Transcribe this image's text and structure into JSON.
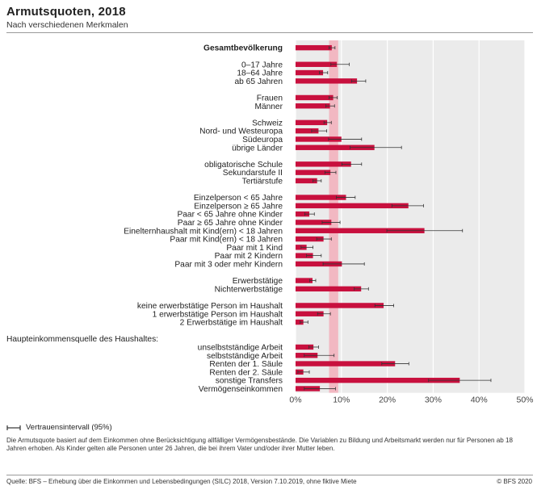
{
  "header": {
    "title": "Armutsquoten, 2018",
    "subtitle": "Nach verschiedenen Merkmalen"
  },
  "legend": {
    "ci_label": "Vertrauensintervall (95%)"
  },
  "note": "Die Armutsquote basiert auf dem Einkommen ohne Berücksichtigung allfälliger Vermögensbestände. Die Variablen zu Bildung und Arbeitsmarkt werden nur für Personen ab 18 Jahren erhoben. Als Kinder gelten alle Personen unter 26 Jahren, die bei ihrem Vater und/oder ihrer Mutter leben.",
  "footer": {
    "source": "Quelle: BFS – Erhebung über die Einkommen und Lebensbedingungen (SILC) 2018, Version 7.10.2019, ohne fiktive Miete",
    "copyright": "© BFS 2020"
  },
  "colors": {
    "bar": "#c8103e",
    "reference_band": "#f2b8c2",
    "plot_background": "#ebebeb",
    "gridline": "#ffffff",
    "ci_line": "#333333"
  },
  "chart_data": {
    "type": "bar",
    "orientation": "horizontal",
    "x_unit": "%",
    "xlim": [
      0,
      50
    ],
    "x_ticks": [
      "0%",
      "10%",
      "20%",
      "30%",
      "40%",
      "50%"
    ],
    "grid": true,
    "reference_band": [
      7.3,
      9.3
    ],
    "categories": [
      {
        "label": "Gesamtbevölkerung",
        "value": 7.9,
        "ci": [
          7.3,
          8.6
        ],
        "bold": true
      },
      {
        "label": "",
        "spacer": true
      },
      {
        "label": "0–17 Jahre",
        "value": 9.0,
        "ci": [
          7.7,
          11.7
        ]
      },
      {
        "label": "18–64 Jahre",
        "value": 6.0,
        "ci": [
          5.2,
          7.0
        ]
      },
      {
        "label": "ab 65 Jahren",
        "value": 13.4,
        "ci": [
          12.2,
          15.3
        ]
      },
      {
        "label": "",
        "spacer": true
      },
      {
        "label": "Frauen",
        "value": 8.2,
        "ci": [
          7.3,
          9.1
        ]
      },
      {
        "label": "Männer",
        "value": 7.5,
        "ci": [
          6.6,
          8.5
        ]
      },
      {
        "label": "",
        "spacer": true
      },
      {
        "label": "Schweiz",
        "value": 6.9,
        "ci": [
          6.2,
          7.8
        ]
      },
      {
        "label": "Nord- und Westeuropa",
        "value": 5.0,
        "ci": [
          3.5,
          6.8
        ]
      },
      {
        "label": "Südeuropa",
        "value": 10.0,
        "ci": [
          7.2,
          14.4
        ]
      },
      {
        "label": "übrige Länder",
        "value": 17.2,
        "ci": [
          11.9,
          23.1
        ]
      },
      {
        "label": "",
        "spacer": true
      },
      {
        "label": "obligatorische Schule",
        "value": 12.1,
        "ci": [
          10.1,
          14.4
        ]
      },
      {
        "label": "Sekundarstufe II",
        "value": 7.6,
        "ci": [
          6.4,
          8.8
        ]
      },
      {
        "label": "Tertiärstufe",
        "value": 4.7,
        "ci": [
          3.8,
          5.6
        ]
      },
      {
        "label": "",
        "spacer": true
      },
      {
        "label": "Einzelperson < 65 Jahre",
        "value": 11.0,
        "ci": [
          8.9,
          13.0
        ]
      },
      {
        "label": "Einzelperson ≥ 65 Jahre",
        "value": 24.6,
        "ci": [
          21.0,
          27.9
        ]
      },
      {
        "label": "Paar < 65 Jahre ohne Kinder",
        "value": 3.0,
        "ci": [
          2.0,
          4.1
        ]
      },
      {
        "label": "Paar ≥ 65 Jahre ohne Kinder",
        "value": 7.8,
        "ci": [
          5.8,
          9.7
        ]
      },
      {
        "label": "Einelternhaushalt mit Kind(ern) < 18 Jahren",
        "value": 28.1,
        "ci": [
          19.9,
          36.4
        ]
      },
      {
        "label": "Paar mit Kind(ern) < 18 Jahren",
        "value": 6.1,
        "ci": [
          4.6,
          7.8
        ]
      },
      {
        "label": "Paar mit 1 Kind",
        "value": 2.4,
        "ci": [
          1.2,
          3.8
        ]
      },
      {
        "label": "Paar mit 2 Kindern",
        "value": 3.8,
        "ci": [
          2.4,
          5.6
        ]
      },
      {
        "label": "Paar mit 3 oder mehr Kindern",
        "value": 10.1,
        "ci": [
          6.0,
          15.0
        ]
      },
      {
        "label": "",
        "spacer": true
      },
      {
        "label": "Erwerbstätige",
        "value": 3.7,
        "ci": [
          3.1,
          4.4
        ]
      },
      {
        "label": "Nichterwerbstätige",
        "value": 14.3,
        "ci": [
          12.8,
          15.9
        ]
      },
      {
        "label": "",
        "spacer": true
      },
      {
        "label": "keine erwerbstätige Person im Haushalt",
        "value": 19.2,
        "ci": [
          17.3,
          21.4
        ]
      },
      {
        "label": "1 erwerbstätige Person im Haushalt",
        "value": 6.1,
        "ci": [
          4.8,
          7.6
        ]
      },
      {
        "label": "2 Erwerbstätige im Haushalt",
        "value": 1.7,
        "ci": [
          1.0,
          2.7
        ]
      },
      {
        "label": "",
        "spacer": true
      },
      {
        "label": "Haupteinkommensquelle des Haushaltes:",
        "heading": true
      },
      {
        "label": "unselbstständige Arbeit",
        "value": 3.9,
        "ci": [
          2.9,
          5.0
        ]
      },
      {
        "label": "selbstständige Arbeit",
        "value": 4.8,
        "ci": [
          1.9,
          8.4
        ]
      },
      {
        "label": "Renten der 1. Säule",
        "value": 21.7,
        "ci": [
          18.8,
          24.7
        ]
      },
      {
        "label": "Renten der 2. Säule",
        "value": 1.7,
        "ci": [
          0.5,
          3.0
        ]
      },
      {
        "label": "sonstige Transfers",
        "value": 35.8,
        "ci": [
          29.0,
          42.6
        ]
      },
      {
        "label": "Vermögenseinkommen",
        "value": 5.3,
        "ci": [
          1.9,
          8.7
        ]
      }
    ]
  }
}
